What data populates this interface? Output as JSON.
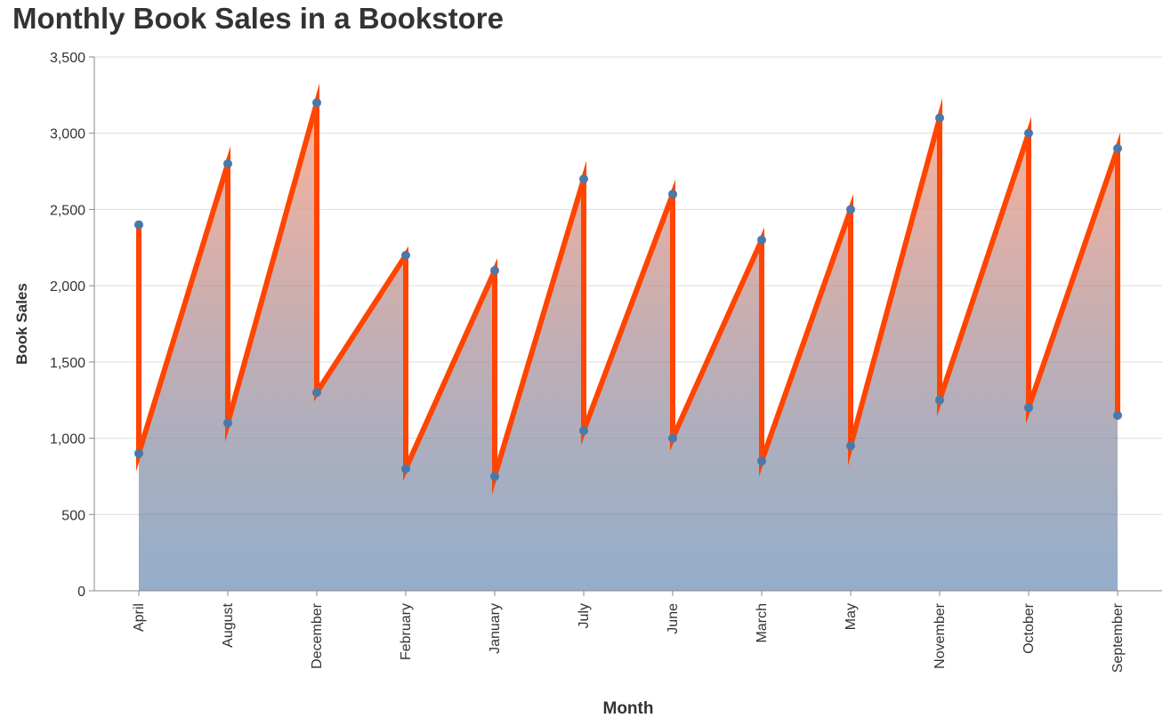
{
  "chart_data": {
    "type": "area",
    "title": "Monthly Book Sales in a Bookstore",
    "xlabel": "Month",
    "ylabel": "Book Sales",
    "ylim": [
      0,
      3500
    ],
    "y_ticks": [
      0,
      500,
      1000,
      1500,
      2000,
      2500,
      3000,
      3500
    ],
    "y_tick_labels": [
      "0",
      "500",
      "1,000",
      "1,500",
      "2,000",
      "2,500",
      "3,000",
      "3,500"
    ],
    "categories": [
      "April",
      "August",
      "December",
      "February",
      "January",
      "July",
      "June",
      "March",
      "May",
      "November",
      "October",
      "September"
    ],
    "series": [
      {
        "values": [
          2400,
          2800,
          3200,
          2200,
          2100,
          2700,
          2600,
          2300,
          2500,
          3100,
          3000,
          2900
        ]
      },
      {
        "values": [
          900,
          1100,
          1300,
          800,
          750,
          1050,
          1000,
          850,
          950,
          1250,
          1200,
          1150
        ]
      }
    ],
    "grid": true,
    "colors": {
      "line": "#ff4500",
      "point": "#4c78a8",
      "gradient_top": "#ff9f80",
      "gradient_bottom": "#4c78a8",
      "grid": "#dddddd",
      "axis": "#888888"
    }
  }
}
